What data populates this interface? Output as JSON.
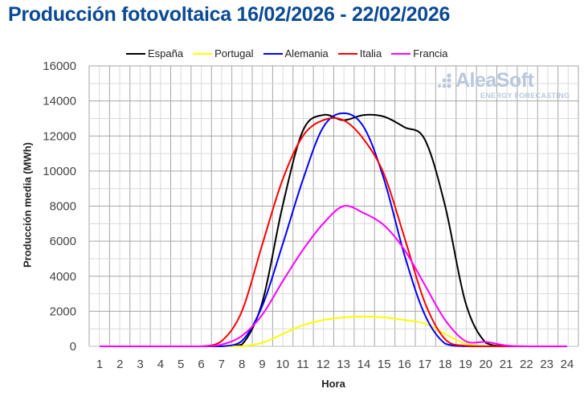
{
  "page": {
    "title": "Producción fotovoltaica 16/02/2026 - 22/02/2026",
    "watermark": {
      "main": "AleaSoft",
      "sub": "ENERGY FORECASTING"
    }
  },
  "chart_data": {
    "type": "line",
    "title": "Producción fotovoltaica 16/02/2026 - 22/02/2026",
    "xlabel": "Hora",
    "ylabel": "Producción media (MWh)",
    "ylim": [
      0,
      16000
    ],
    "yticks": [
      0,
      2000,
      4000,
      6000,
      8000,
      10000,
      12000,
      14000,
      16000
    ],
    "grid": true,
    "legend_position": "top",
    "x": [
      1,
      2,
      3,
      4,
      5,
      6,
      7,
      8,
      9,
      10,
      11,
      12,
      13,
      14,
      15,
      16,
      17,
      18,
      19,
      20,
      21,
      22,
      23,
      24
    ],
    "series": [
      {
        "name": "España",
        "color": "#000000",
        "values": [
          0,
          0,
          0,
          0,
          0,
          0,
          0,
          100,
          2500,
          8000,
          12300,
          13200,
          12900,
          13200,
          13100,
          12500,
          11800,
          8000,
          2500,
          200,
          0,
          0,
          0,
          0
        ]
      },
      {
        "name": "Portugal",
        "color": "#ffff00",
        "values": [
          0,
          0,
          0,
          0,
          0,
          0,
          0,
          0,
          200,
          700,
          1200,
          1500,
          1650,
          1700,
          1650,
          1500,
          1300,
          700,
          150,
          20,
          0,
          0,
          0,
          0
        ]
      },
      {
        "name": "Alemania",
        "color": "#0000ff",
        "values": [
          0,
          0,
          0,
          0,
          0,
          0,
          0,
          300,
          2300,
          5800,
          9500,
          12500,
          13300,
          12500,
          9500,
          5200,
          1800,
          150,
          0,
          0,
          0,
          0,
          0,
          0
        ]
      },
      {
        "name": "Italia",
        "color": "#ff0000",
        "values": [
          0,
          0,
          0,
          0,
          0,
          0,
          300,
          2000,
          5800,
          9500,
          12000,
          12900,
          12900,
          11800,
          9800,
          6200,
          2500,
          400,
          30,
          0,
          0,
          0,
          0,
          0
        ]
      },
      {
        "name": "Francia",
        "color": "#ff00ff",
        "values": [
          0,
          0,
          0,
          0,
          0,
          0,
          100,
          600,
          1800,
          3700,
          5500,
          7000,
          8000,
          7600,
          6900,
          5500,
          3500,
          1500,
          300,
          250,
          50,
          0,
          0,
          0
        ]
      }
    ]
  }
}
